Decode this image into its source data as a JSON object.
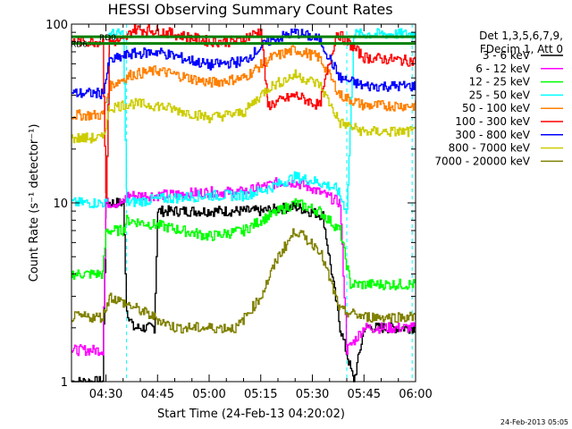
{
  "chart_data": {
    "type": "line",
    "title": "HESSI Observing Summary Count Rates",
    "xlabel": "Start Time (24-Feb-13 04:20:02)",
    "ylabel": "Count Rate (s⁻¹ detector⁻¹)",
    "y_scale": "log",
    "ylim": [
      1,
      100
    ],
    "xlim": [
      "04:20",
      "06:00"
    ],
    "x_tick_labels": [
      "04:30",
      "04:45",
      "05:00",
      "05:15",
      "05:30",
      "05:45",
      "06:00"
    ],
    "y_tick_labels": [
      "1",
      "10",
      "100"
    ],
    "timestamp": "24-Feb-2013 05:05",
    "legend_header": [
      "Det 1,3,5,6,7,9,",
      "FDecim 1, Att 0"
    ],
    "annotations": [
      "RD0",
      "RD6"
    ],
    "grid": false,
    "legend_position": "right",
    "series": [
      {
        "name": "3 - 6 keV",
        "color": "#000000",
        "points": [
          [
            "04:20",
            1
          ],
          [
            "04:29",
            1
          ],
          [
            "04:30",
            10
          ],
          [
            "04:35",
            10
          ],
          [
            "04:36",
            2.5
          ],
          [
            "04:38",
            2
          ],
          [
            "04:44",
            2
          ],
          [
            "04:45",
            9
          ],
          [
            "05:00",
            9
          ],
          [
            "05:15",
            9
          ],
          [
            "05:25",
            9.5
          ],
          [
            "05:33",
            8.5
          ],
          [
            "05:38",
            2
          ],
          [
            "05:42",
            1
          ],
          [
            "05:45",
            2
          ],
          [
            "06:00",
            2
          ]
        ]
      },
      {
        "name": "6 - 12 keV",
        "color": "#ff00ff",
        "points": [
          [
            "04:20",
            1.5
          ],
          [
            "04:29",
            1.5
          ],
          [
            "04:30",
            10
          ],
          [
            "04:35",
            10
          ],
          [
            "04:36",
            11
          ],
          [
            "04:45",
            11
          ],
          [
            "05:00",
            11.5
          ],
          [
            "05:10",
            11.5
          ],
          [
            "05:20",
            13
          ],
          [
            "05:25",
            13
          ],
          [
            "05:30",
            12
          ],
          [
            "05:38",
            10
          ],
          [
            "05:40",
            1.5
          ],
          [
            "05:45",
            2
          ],
          [
            "06:00",
            2
          ]
        ]
      },
      {
        "name": "12 - 25 keV",
        "color": "#00ff00",
        "points": [
          [
            "04:20",
            4
          ],
          [
            "04:29",
            4
          ],
          [
            "04:30",
            7
          ],
          [
            "04:35",
            7
          ],
          [
            "04:36",
            8
          ],
          [
            "04:45",
            7.5
          ],
          [
            "05:00",
            6.5
          ],
          [
            "05:10",
            7
          ],
          [
            "05:15",
            8
          ],
          [
            "05:25",
            10
          ],
          [
            "05:32",
            9
          ],
          [
            "05:38",
            7
          ],
          [
            "05:41",
            3.5
          ],
          [
            "06:00",
            3.5
          ]
        ]
      },
      {
        "name": "25 - 50 keV",
        "color": "#00ffff",
        "points": [
          [
            "04:20",
            10
          ],
          [
            "04:29",
            10
          ],
          [
            "04:30",
            10
          ],
          [
            "04:31",
            88
          ],
          [
            "04:35",
            88
          ],
          [
            "04:36",
            10
          ],
          [
            "04:45",
            10.5
          ],
          [
            "05:00",
            11
          ],
          [
            "05:10",
            11
          ],
          [
            "05:17",
            12
          ],
          [
            "05:25",
            14
          ],
          [
            "05:32",
            13
          ],
          [
            "05:37",
            12
          ],
          [
            "05:40",
            9
          ],
          [
            "05:42",
            88
          ],
          [
            "06:00",
            88
          ]
        ]
      },
      {
        "name": "50 - 100 keV",
        "color": "#ff8000",
        "points": [
          [
            "04:20",
            31
          ],
          [
            "04:29",
            31
          ],
          [
            "04:31",
            45
          ],
          [
            "04:37",
            52
          ],
          [
            "04:45",
            55
          ],
          [
            "05:00",
            47
          ],
          [
            "05:10",
            50
          ],
          [
            "05:18",
            65
          ],
          [
            "05:25",
            72
          ],
          [
            "05:32",
            65
          ],
          [
            "05:38",
            40
          ],
          [
            "05:45",
            35
          ],
          [
            "06:00",
            35
          ]
        ]
      },
      {
        "name": "100 - 300 keV",
        "color": "#ff0000",
        "points": [
          [
            "04:20",
            80
          ],
          [
            "04:29",
            80
          ],
          [
            "04:30",
            10
          ],
          [
            "04:31",
            80
          ],
          [
            "04:35",
            80
          ],
          [
            "04:38",
            94
          ],
          [
            "04:45",
            92
          ],
          [
            "05:00",
            80
          ],
          [
            "05:08",
            80
          ],
          [
            "05:15",
            92
          ],
          [
            "05:17",
            35
          ],
          [
            "05:25",
            40
          ],
          [
            "05:32",
            35
          ],
          [
            "05:37",
            90
          ],
          [
            "05:45",
            65
          ],
          [
            "06:00",
            62
          ]
        ]
      },
      {
        "name": "300 - 800 keV",
        "color": "#0000ff",
        "points": [
          [
            "04:20",
            41
          ],
          [
            "04:29",
            41
          ],
          [
            "04:31",
            62
          ],
          [
            "04:37",
            68
          ],
          [
            "04:45",
            70
          ],
          [
            "05:00",
            59
          ],
          [
            "05:10",
            62
          ],
          [
            "05:17",
            80
          ],
          [
            "05:25",
            90
          ],
          [
            "05:32",
            82
          ],
          [
            "05:38",
            50
          ],
          [
            "05:45",
            45
          ],
          [
            "06:00",
            45
          ]
        ]
      },
      {
        "name": "800 - 7000 keV",
        "color": "#cccc00",
        "points": [
          [
            "04:20",
            23
          ],
          [
            "04:29",
            23
          ],
          [
            "04:31",
            34
          ],
          [
            "04:37",
            36
          ],
          [
            "04:45",
            35
          ],
          [
            "05:00",
            30
          ],
          [
            "05:10",
            32
          ],
          [
            "05:17",
            44
          ],
          [
            "05:25",
            52
          ],
          [
            "05:32",
            46
          ],
          [
            "05:38",
            28
          ],
          [
            "05:45",
            25
          ],
          [
            "06:00",
            25
          ]
        ]
      },
      {
        "name": "7000 - 20000 keV",
        "color": "#808000",
        "points": [
          [
            "04:20",
            2.3
          ],
          [
            "04:29",
            2.3
          ],
          [
            "04:31",
            3
          ],
          [
            "04:40",
            2.5
          ],
          [
            "04:50",
            2
          ],
          [
            "05:00",
            2
          ],
          [
            "05:08",
            2
          ],
          [
            "05:15",
            3
          ],
          [
            "05:20",
            5
          ],
          [
            "05:25",
            7
          ],
          [
            "05:32",
            5.5
          ],
          [
            "05:38",
            2.5
          ],
          [
            "05:45",
            2.3
          ],
          [
            "06:00",
            2.3
          ]
        ]
      }
    ],
    "reference_lines": [
      {
        "label": "RD0",
        "color": "#008000",
        "value": 85
      },
      {
        "label": "RD6",
        "color": "#008000",
        "value": 78
      }
    ],
    "vertical_markers": [
      "04:36",
      "05:40",
      "05:59"
    ]
  }
}
